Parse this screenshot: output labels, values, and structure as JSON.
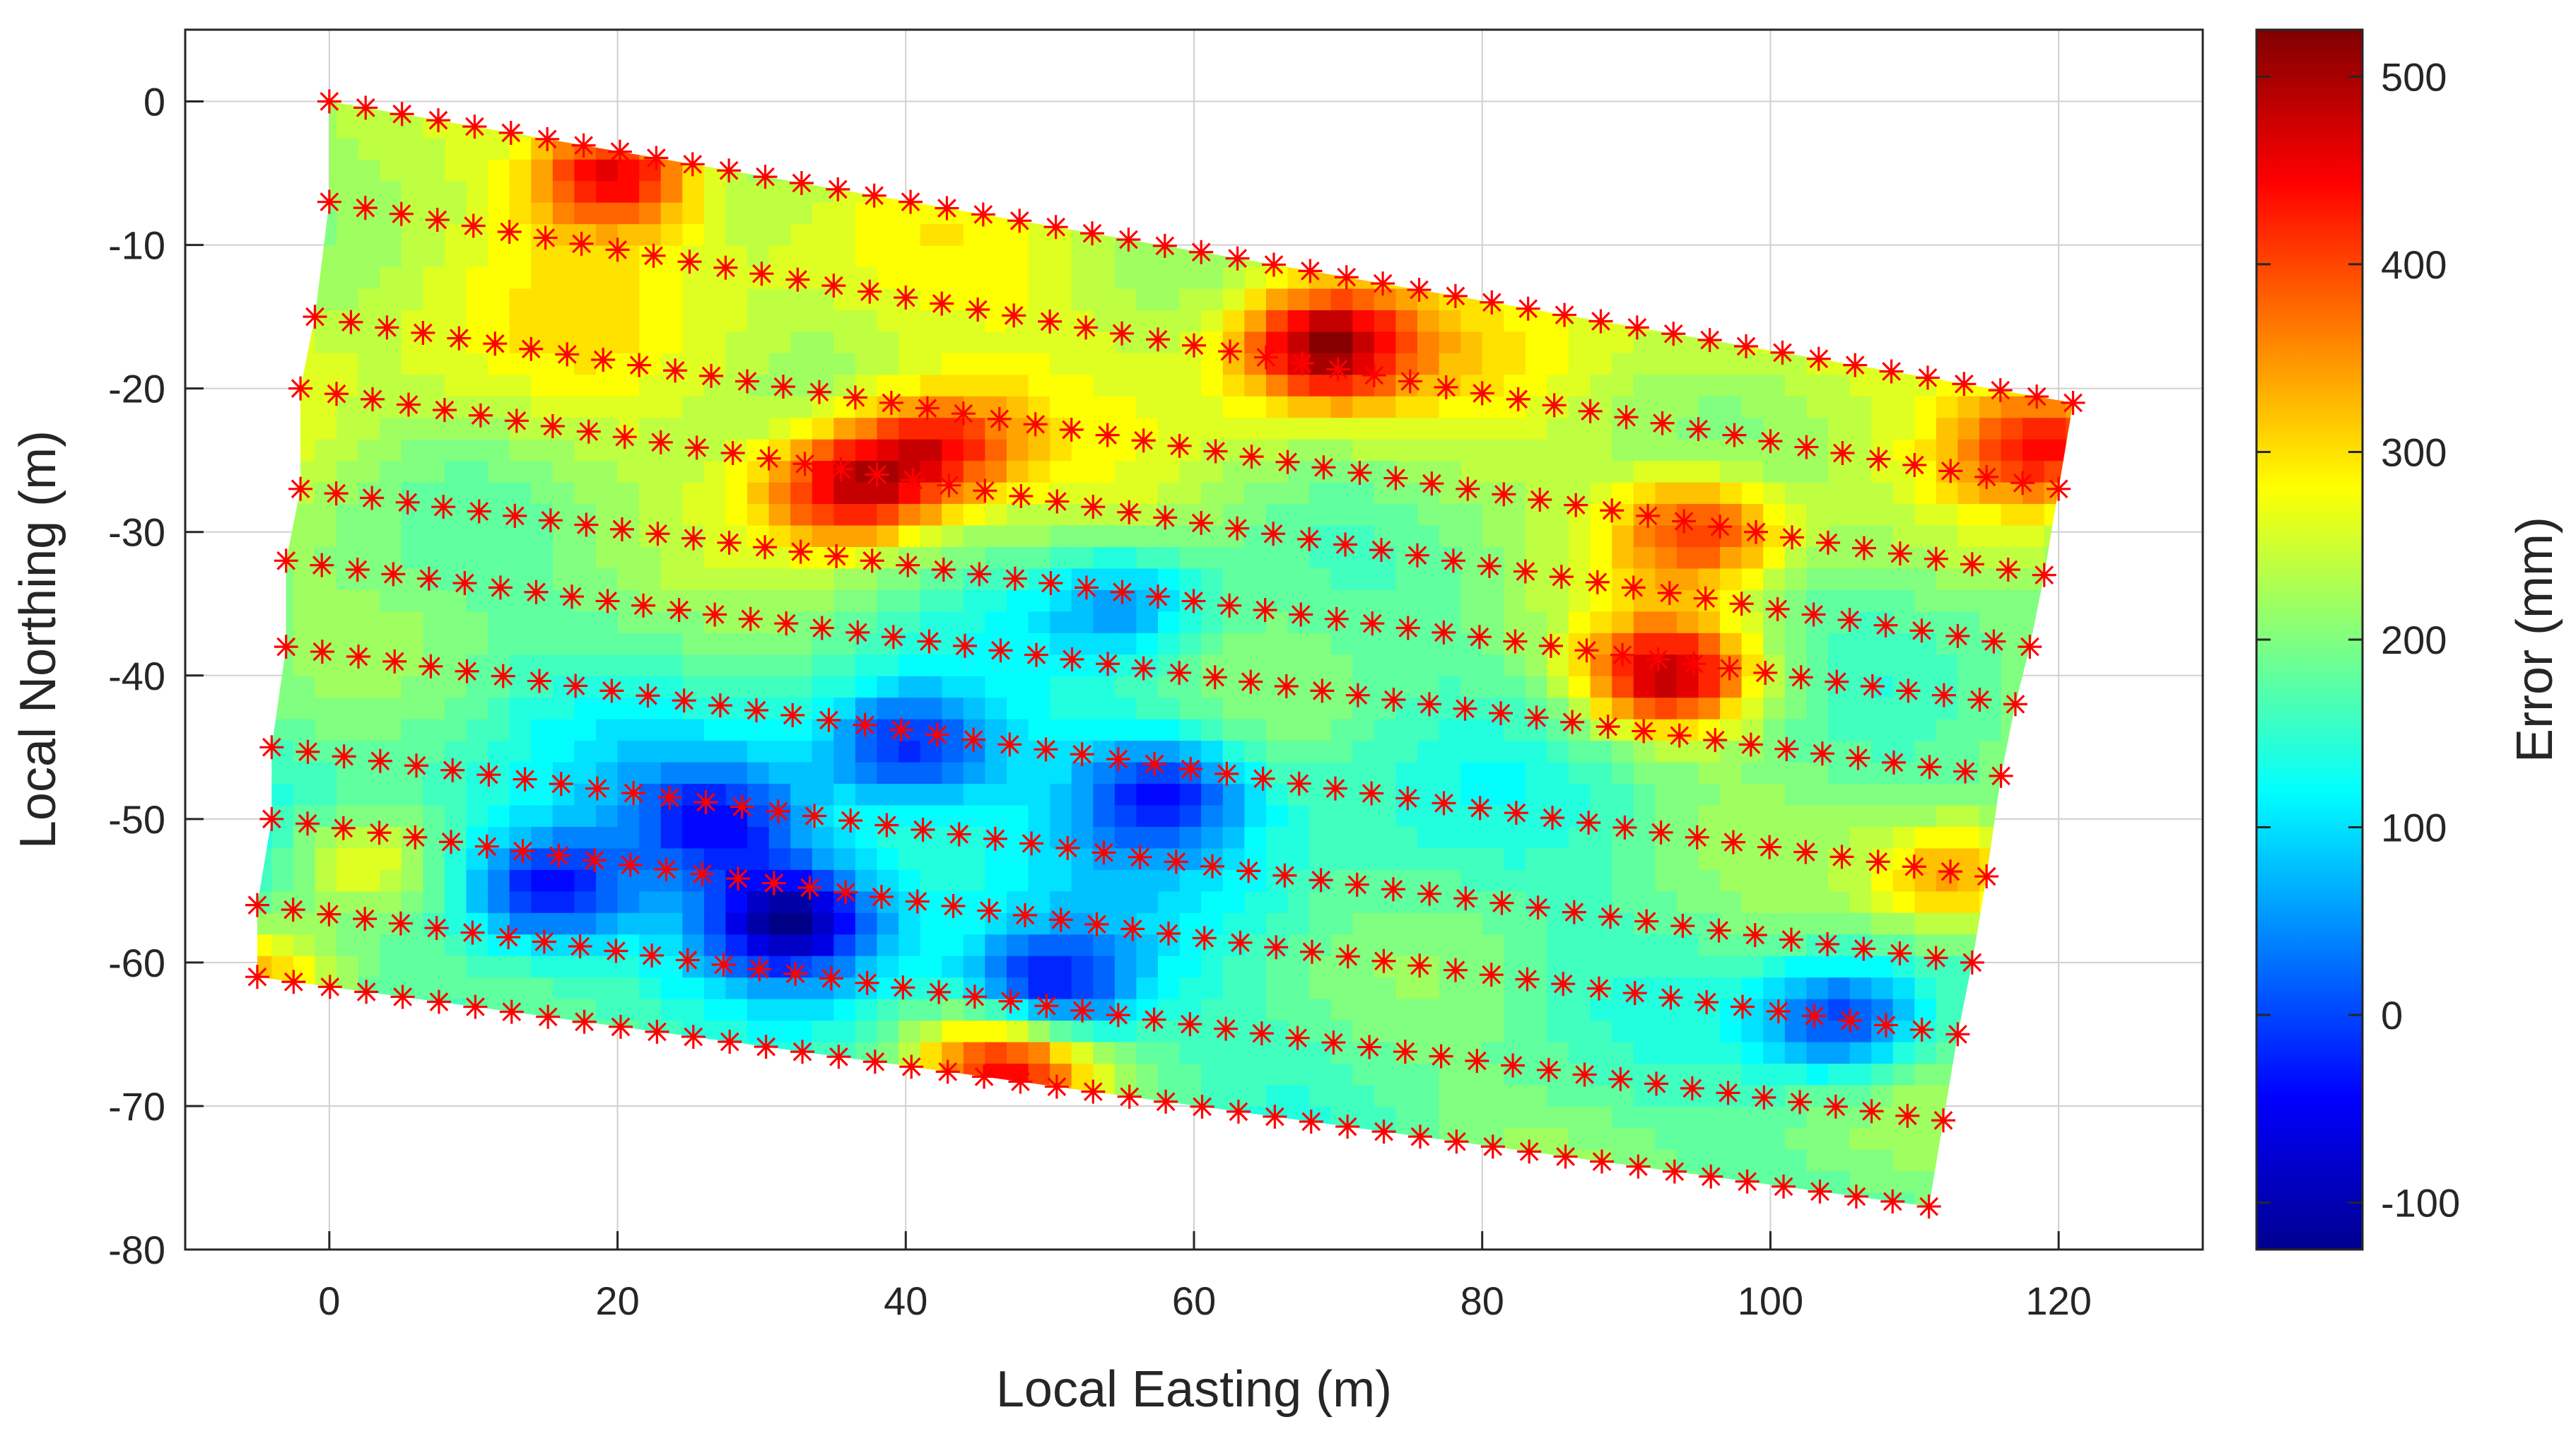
{
  "chart_data": {
    "type": "heatmap",
    "title": "",
    "xlabel": "Local Easting (m)",
    "ylabel": "Local Northing (m)",
    "xlim": [
      -10,
      130
    ],
    "ylim": [
      -80,
      5
    ],
    "xticks": [
      0,
      20,
      40,
      60,
      80,
      100,
      120
    ],
    "yticks": [
      0,
      -10,
      -20,
      -30,
      -40,
      -50,
      -60,
      -70,
      -80
    ],
    "grid": true,
    "colorbar": {
      "label": "Error (mm)",
      "clim": [
        -125,
        525
      ],
      "ticks": [
        -100,
        0,
        100,
        200,
        300,
        400,
        500
      ],
      "colormap": "jet"
    },
    "survey_lines": {
      "marker": "*",
      "marker_color": "#ff0000",
      "lines": [
        {
          "start": [
            0,
            0
          ],
          "end": [
            121,
            -21
          ]
        },
        {
          "start": [
            0,
            -7
          ],
          "end": [
            120,
            -27
          ]
        },
        {
          "start": [
            -1,
            -15
          ],
          "end": [
            119,
            -33
          ]
        },
        {
          "start": [
            -2,
            -20
          ],
          "end": [
            118,
            -38
          ]
        },
        {
          "start": [
            -2,
            -27
          ],
          "end": [
            117,
            -42
          ]
        },
        {
          "start": [
            -3,
            -32
          ],
          "end": [
            116,
            -47
          ]
        },
        {
          "start": [
            -3,
            -38
          ],
          "end": [
            115,
            -54
          ]
        },
        {
          "start": [
            -4,
            -45
          ],
          "end": [
            114,
            -60
          ]
        },
        {
          "start": [
            -4,
            -50
          ],
          "end": [
            113,
            -65
          ]
        },
        {
          "start": [
            -5,
            -56
          ],
          "end": [
            112,
            -71
          ]
        },
        {
          "start": [
            -5,
            -61
          ],
          "end": [
            111,
            -77
          ]
        }
      ]
    },
    "hotspots": [
      {
        "x": 93,
        "y": -40,
        "value": 470
      },
      {
        "x": 69,
        "y": -17,
        "value": 450
      },
      {
        "x": 20,
        "y": -5,
        "value": 440
      },
      {
        "x": 36,
        "y": -27,
        "value": 420
      },
      {
        "x": 42,
        "y": -24,
        "value": 380
      },
      {
        "x": 47,
        "y": -67,
        "value": 440
      },
      {
        "x": 119,
        "y": -24,
        "value": 380
      },
      {
        "x": 95,
        "y": -30,
        "value": 380
      },
      {
        "x": 113,
        "y": -54,
        "value": 360
      },
      {
        "x": 2,
        "y": -53,
        "value": 320
      },
      {
        "x": -5,
        "y": -61,
        "value": 340
      },
      {
        "x": 32,
        "y": -57,
        "value": -40
      },
      {
        "x": 50,
        "y": -62,
        "value": -40
      },
      {
        "x": 15,
        "y": -55,
        "value": -20
      },
      {
        "x": 40,
        "y": -45,
        "value": 10
      },
      {
        "x": 58,
        "y": -48,
        "value": 20
      },
      {
        "x": 105,
        "y": -64,
        "value": -10
      },
      {
        "x": 27,
        "y": -50,
        "value": 30
      },
      {
        "x": 55,
        "y": -35,
        "value": 60
      }
    ]
  }
}
